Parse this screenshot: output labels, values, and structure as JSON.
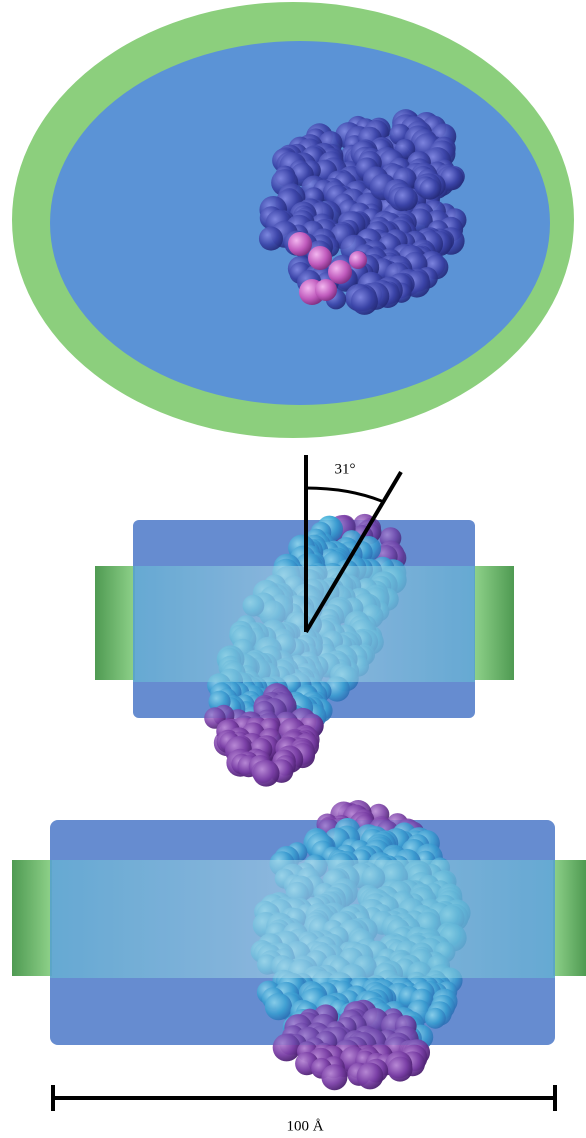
{
  "labels": {
    "angle": "31°",
    "scale": "100 Å"
  }
}
